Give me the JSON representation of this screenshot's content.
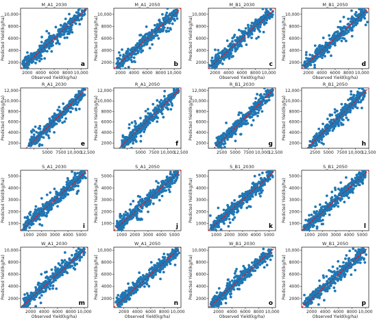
{
  "chart_data": [
    {
      "type": "scatter",
      "title": "M_A1_2030",
      "letter": "a",
      "xlabel": "Observed Yield(kg/ha)",
      "ylabel": "Predicted Yield(kg/ha)",
      "xlim": [
        1000,
        11000
      ],
      "ylim": [
        1000,
        11000
      ],
      "xticks": [
        2000,
        4000,
        6000,
        8000,
        10000
      ],
      "xtick_labels": [
        "2000",
        "4000",
        "6000",
        "8000",
        "10,000"
      ],
      "yticks": [
        2000,
        4000,
        6000,
        8000,
        10000
      ],
      "ytick_labels": [
        "2000",
        "4000",
        "6000",
        "8000",
        "10,000"
      ],
      "marker_color": "#1f77b4",
      "reference_line_color": "#ff0000",
      "reference_line": "y = x",
      "point_count": 400
    },
    {
      "type": "scatter",
      "title": "M_A1_2050",
      "letter": "b",
      "xlabel": "",
      "ylabel": "Predicted Yield(kg/ha)",
      "xlim": [
        1000,
        11000
      ],
      "ylim": [
        1000,
        11000
      ],
      "xticks": [
        2000,
        4000,
        6000,
        8000,
        10000
      ],
      "xtick_labels": [
        "2000",
        "4000",
        "6000",
        "8000",
        "10,000"
      ],
      "yticks": [
        2000,
        4000,
        6000,
        8000,
        10000
      ],
      "ytick_labels": [
        "2000",
        "4000",
        "6000",
        "8000",
        "10,000"
      ],
      "marker_color": "#1f77b4",
      "reference_line_color": "#ff0000",
      "reference_line": "y = x",
      "point_count": 400
    },
    {
      "type": "scatter",
      "title": "M_B1_2030",
      "letter": "c",
      "xlabel": "Observed Yield(kg/ha)",
      "ylabel": "Predicted Yield(kg/ha)",
      "xlim": [
        1000,
        11000
      ],
      "ylim": [
        1000,
        11000
      ],
      "xticks": [
        2000,
        4000,
        6000,
        8000,
        10000
      ],
      "xtick_labels": [
        "2000",
        "4000",
        "6000",
        "8000",
        "10,000"
      ],
      "yticks": [
        2000,
        4000,
        6000,
        8000,
        10000
      ],
      "ytick_labels": [
        "2000",
        "4000",
        "6000",
        "8000",
        "10,000"
      ],
      "marker_color": "#1f77b4",
      "reference_line_color": "#ff0000",
      "reference_line": "y = x",
      "point_count": 400
    },
    {
      "type": "scatter",
      "title": "M_B1_2050",
      "letter": "d",
      "xlabel": "Observed Yield(kg/ha)",
      "ylabel": "Predicted Yield(kg/ha)",
      "xlim": [
        1000,
        11000
      ],
      "ylim": [
        1000,
        11000
      ],
      "xticks": [
        2000,
        4000,
        6000,
        8000,
        10000
      ],
      "xtick_labels": [
        "2000",
        "4000",
        "6000",
        "8000",
        "10,000"
      ],
      "yticks": [
        2000,
        4000,
        6000,
        8000,
        10000
      ],
      "ytick_labels": [
        "2000",
        "4000",
        "6000",
        "8000",
        "10,000"
      ],
      "marker_color": "#1f77b4",
      "reference_line_color": "#ff0000",
      "reference_line": "y = x",
      "point_count": 400
    },
    {
      "type": "scatter",
      "title": "R_A1_2030",
      "letter": "e",
      "xlabel": "",
      "ylabel": "Predicted Yield(kg/ha)",
      "xlim": [
        0,
        12500
      ],
      "ylim": [
        1000,
        12500
      ],
      "xticks": [
        2500,
        5000,
        7500,
        10000,
        12500
      ],
      "xtick_labels": [
        "",
        "5000",
        "7500",
        "10,000",
        "12,500"
      ],
      "yticks": [
        2000,
        4000,
        6000,
        8000,
        10000,
        12000
      ],
      "ytick_labels": [
        "2000",
        "4000",
        "6000",
        "8000",
        "10,000",
        "12,000"
      ],
      "marker_color": "#1f77b4",
      "reference_line_color": "#ff0000",
      "reference_line": "y = x",
      "point_count": 400
    },
    {
      "type": "scatter",
      "title": "R_A1_2050",
      "letter": "f",
      "xlabel": "",
      "ylabel": "Predicted Yield(kg/ha)",
      "xlim": [
        0,
        12500
      ],
      "ylim": [
        1000,
        12500
      ],
      "xticks": [
        2500,
        5000,
        7500,
        10000,
        12500
      ],
      "xtick_labels": [
        "",
        "5000",
        "7500",
        "10,000",
        "12,500"
      ],
      "yticks": [
        2000,
        4000,
        6000,
        8000,
        10000,
        12000
      ],
      "ytick_labels": [
        "2000",
        "4000",
        "6000",
        "8000",
        "10,000",
        "12,000"
      ],
      "marker_color": "#1f77b4",
      "reference_line_color": "#ff0000",
      "reference_line": "y = x",
      "point_count": 400
    },
    {
      "type": "scatter",
      "title": "R_B1_2030",
      "letter": "g",
      "xlabel": "",
      "ylabel": "Predicted Yield(kg/ha)",
      "xlim": [
        0,
        12500
      ],
      "ylim": [
        1000,
        12500
      ],
      "xticks": [
        2500,
        5000,
        7500,
        10000,
        12500
      ],
      "xtick_labels": [
        "2500",
        "5000",
        "7500",
        "10,000",
        "12,500"
      ],
      "yticks": [
        2000,
        4000,
        6000,
        8000,
        10000,
        12000
      ],
      "ytick_labels": [
        "2000",
        "4000",
        "6000",
        "8000",
        "10,000",
        "12,000"
      ],
      "marker_color": "#1f77b4",
      "reference_line_color": "#ff0000",
      "reference_line": "y = x",
      "point_count": 400
    },
    {
      "type": "scatter",
      "title": "R_B1_2050",
      "letter": "h",
      "xlabel": "",
      "ylabel": "Predicted Yield(kg/ha)",
      "xlim": [
        0,
        12500
      ],
      "ylim": [
        1000,
        12500
      ],
      "xticks": [
        2500,
        5000,
        7500,
        10000,
        12500
      ],
      "xtick_labels": [
        "2500",
        "5000",
        "7500",
        "10,000",
        "12,500"
      ],
      "yticks": [
        2000,
        4000,
        6000,
        8000,
        10000,
        12000
      ],
      "ytick_labels": [
        "2000",
        "4000",
        "6000",
        "8000",
        "10,000",
        "12,000"
      ],
      "marker_color": "#1f77b4",
      "reference_line_color": "#ff0000",
      "reference_line": "y = x",
      "point_count": 400
    },
    {
      "type": "scatter",
      "title": "S_A1_2030",
      "letter": "i",
      "xlabel": "",
      "ylabel": "Predicted Yield(kg/ha)",
      "xlim": [
        400,
        5500
      ],
      "ylim": [
        400,
        5500
      ],
      "xticks": [
        1000,
        2000,
        3000,
        4000,
        5000
      ],
      "xtick_labels": [
        "1000",
        "2000",
        "3000",
        "4000",
        "5000"
      ],
      "yticks": [
        1000,
        2000,
        3000,
        4000,
        5000
      ],
      "ytick_labels": [
        "1000",
        "2000",
        "3000",
        "4000",
        "5000"
      ],
      "marker_color": "#1f77b4",
      "reference_line_color": "#ff0000",
      "reference_line": "y = x",
      "point_count": 450
    },
    {
      "type": "scatter",
      "title": "S_A1_2050",
      "letter": "j",
      "xlabel": "",
      "ylabel": "Predicted Yield(kg/ha)",
      "xlim": [
        400,
        5500
      ],
      "ylim": [
        400,
        5500
      ],
      "xticks": [
        1000,
        2000,
        3000,
        4000,
        5000
      ],
      "xtick_labels": [
        "1000",
        "2000",
        "3000",
        "4000",
        "5000"
      ],
      "yticks": [
        1000,
        2000,
        3000,
        4000,
        5000
      ],
      "ytick_labels": [
        "1000",
        "2000",
        "3000",
        "4000",
        "5000"
      ],
      "marker_color": "#1f77b4",
      "reference_line_color": "#ff0000",
      "reference_line": "y = x",
      "point_count": 450
    },
    {
      "type": "scatter",
      "title": "S_B1_2030",
      "letter": "k",
      "xlabel": "",
      "ylabel": "Predicted Yield(kg/ha)",
      "xlim": [
        400,
        5500
      ],
      "ylim": [
        400,
        5500
      ],
      "xticks": [
        1000,
        2000,
        3000,
        4000,
        5000
      ],
      "xtick_labels": [
        "1000",
        "2000",
        "3000",
        "4000",
        "5000"
      ],
      "yticks": [
        1000,
        2000,
        3000,
        4000,
        5000
      ],
      "ytick_labels": [
        "1000",
        "2000",
        "3000",
        "4000",
        "5000"
      ],
      "marker_color": "#1f77b4",
      "reference_line_color": "#ff0000",
      "reference_line": "y = x",
      "point_count": 450
    },
    {
      "type": "scatter",
      "title": "S_B1_2050",
      "letter": "l",
      "xlabel": "",
      "ylabel": "Predicted Yield(kg/ha)",
      "xlim": [
        400,
        5500
      ],
      "ylim": [
        400,
        5500
      ],
      "xticks": [
        1000,
        2000,
        3000,
        4000,
        5000
      ],
      "xtick_labels": [
        "1000",
        "2000",
        "3000",
        "4000",
        "5000"
      ],
      "yticks": [
        1000,
        2000,
        3000,
        4000,
        5000
      ],
      "ytick_labels": [
        "1000",
        "2000",
        "3000",
        "4000",
        "5000"
      ],
      "marker_color": "#1f77b4",
      "reference_line_color": "#ff0000",
      "reference_line": "y = x",
      "point_count": 450
    },
    {
      "type": "scatter",
      "title": "W_A1_2030",
      "letter": "m",
      "xlabel": "Observed Yield(kg/ha)",
      "ylabel": "Predicted Yield(kg/ha)",
      "xlim": [
        500,
        10500
      ],
      "ylim": [
        500,
        10500
      ],
      "xticks": [
        2000,
        4000,
        6000,
        8000,
        10000
      ],
      "xtick_labels": [
        "2000",
        "4000",
        "6000",
        "8000",
        "10,000"
      ],
      "yticks": [
        2000,
        4000,
        6000,
        8000,
        10000
      ],
      "ytick_labels": [
        "2000",
        "4000",
        "6000",
        "8000",
        "10,000"
      ],
      "marker_color": "#1f77b4",
      "reference_line_color": "#ff0000",
      "reference_line": "y = x",
      "point_count": 400
    },
    {
      "type": "scatter",
      "title": "W_A1_2050",
      "letter": "n",
      "xlabel": "Observed Yield(kg/ha)",
      "ylabel": "Predicted Yield(kg/ha)",
      "xlim": [
        500,
        10500
      ],
      "ylim": [
        500,
        10500
      ],
      "xticks": [
        2000,
        4000,
        6000,
        8000,
        10000
      ],
      "xtick_labels": [
        "2000",
        "4000",
        "6000",
        "8000",
        "10,000"
      ],
      "yticks": [
        2000,
        4000,
        6000,
        8000,
        10000
      ],
      "ytick_labels": [
        "2000",
        "4000",
        "6000",
        "8000",
        "10,000"
      ],
      "marker_color": "#1f77b4",
      "reference_line_color": "#ff0000",
      "reference_line": "y = x",
      "point_count": 400
    },
    {
      "type": "scatter",
      "title": "W_B1_2030",
      "letter": "o",
      "xlabel": "Observed Yield(kg/ha)",
      "ylabel": "Predicted Yield(kg/ha)",
      "xlim": [
        500,
        10500
      ],
      "ylim": [
        500,
        10500
      ],
      "xticks": [
        2000,
        4000,
        6000,
        8000,
        10000
      ],
      "xtick_labels": [
        "2000",
        "4000",
        "6000",
        "8000",
        "10,000"
      ],
      "yticks": [
        2000,
        4000,
        6000,
        8000,
        10000
      ],
      "ytick_labels": [
        "2000",
        "4000",
        "6000",
        "8000",
        "10,000"
      ],
      "marker_color": "#1f77b4",
      "reference_line_color": "#ff0000",
      "reference_line": "y = x",
      "point_count": 400
    },
    {
      "type": "scatter",
      "title": "W_B1_2050",
      "letter": "p",
      "xlabel": "Observed Yield(kg/ha)",
      "ylabel": "Predicted Yield(kg/ha)",
      "xlim": [
        500,
        10500
      ],
      "ylim": [
        500,
        10500
      ],
      "xticks": [
        2000,
        4000,
        6000,
        8000,
        10000
      ],
      "xtick_labels": [
        "2000",
        "4000",
        "6000",
        "8000",
        "10,000"
      ],
      "yticks": [
        2000,
        4000,
        6000,
        8000,
        10000
      ],
      "ytick_labels": [
        "2000",
        "4000",
        "6000",
        "8000",
        "10,000"
      ],
      "marker_color": "#1f77b4",
      "reference_line_color": "#ff0000",
      "reference_line": "y = x",
      "point_count": 400
    }
  ]
}
